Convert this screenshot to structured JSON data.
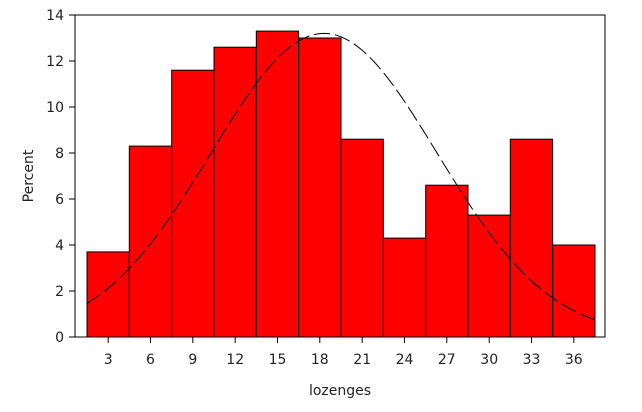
{
  "chart_data": {
    "type": "bar",
    "title": "",
    "xlabel": "lozenges",
    "ylabel": "Percent",
    "ylim": [
      0,
      14
    ],
    "xlim": [
      1.5,
      37.5
    ],
    "bin_width": 3,
    "bars": [
      {
        "center": 3,
        "value": 3.7
      },
      {
        "center": 6,
        "value": 8.3
      },
      {
        "center": 9,
        "value": 11.6
      },
      {
        "center": 12,
        "value": 12.6
      },
      {
        "center": 15,
        "value": 13.3
      },
      {
        "center": 18,
        "value": 13.0
      },
      {
        "center": 21,
        "value": 8.6
      },
      {
        "center": 24,
        "value": 4.3
      },
      {
        "center": 27,
        "value": 6.6
      },
      {
        "center": 30,
        "value": 5.3
      },
      {
        "center": 33,
        "value": 8.6
      },
      {
        "center": 36,
        "value": 4.0
      }
    ],
    "x_ticks": [
      {
        "value": 3,
        "label": "3"
      },
      {
        "value": 6,
        "label": "6"
      },
      {
        "value": 9,
        "label": "9"
      },
      {
        "value": 12,
        "label": "12"
      },
      {
        "value": 15,
        "label": "15"
      },
      {
        "value": 18,
        "label": "18"
      },
      {
        "value": 21,
        "label": "21"
      },
      {
        "value": 24,
        "label": "24"
      },
      {
        "value": 27,
        "label": "27"
      },
      {
        "value": 30,
        "label": "30"
      },
      {
        "value": 33,
        "label": "33"
      },
      {
        "value": 36,
        "label": "36"
      }
    ],
    "y_ticks": [
      {
        "value": 0,
        "label": "0"
      },
      {
        "value": 2,
        "label": "2"
      },
      {
        "value": 4,
        "label": "4"
      },
      {
        "value": 6,
        "label": "6"
      },
      {
        "value": 8,
        "label": "8"
      },
      {
        "value": 10,
        "label": "10"
      },
      {
        "value": 12,
        "label": "12"
      },
      {
        "value": 14,
        "label": "14"
      }
    ],
    "normal_curve": {
      "mean": 18.3,
      "peak": 13.2,
      "sd": 8.0,
      "style": "long-dash"
    },
    "grid": false,
    "bar_color": "#ff0000",
    "bar_edge_color": "#000000",
    "curve_color": "#000000"
  }
}
